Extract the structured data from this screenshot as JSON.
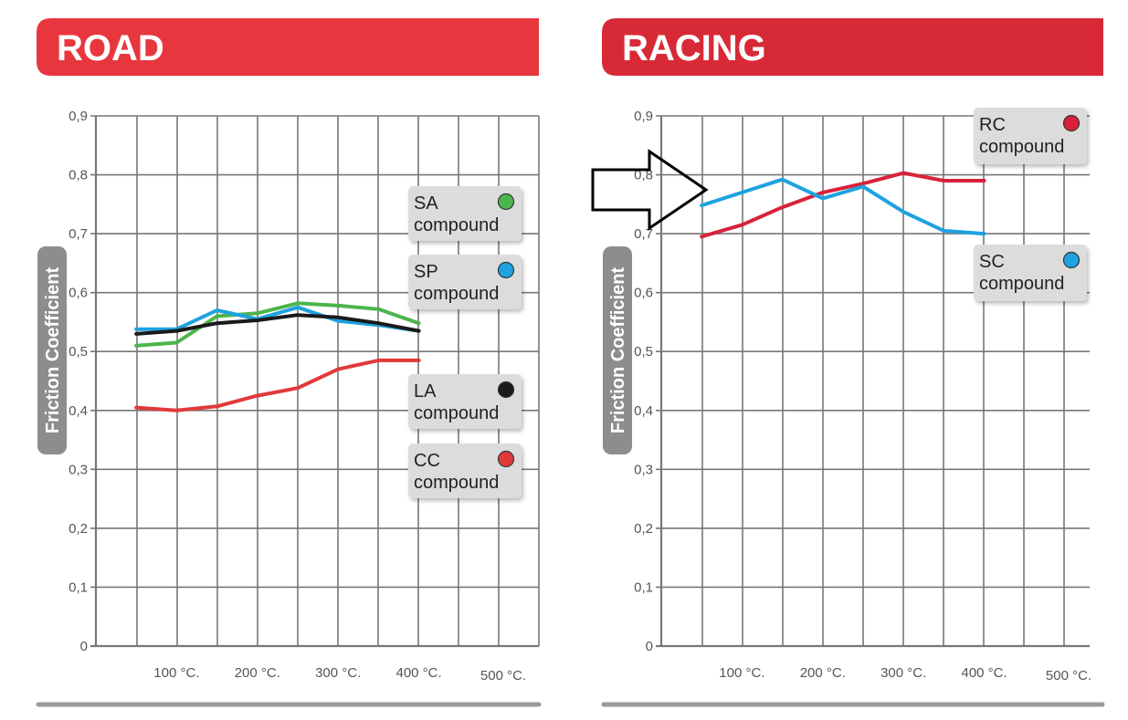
{
  "charts": [
    {
      "banner_title": "ROAD",
      "colors": {
        "banner": "#e8363f",
        "grid": "#777777"
      },
      "legend_entries": [
        {
          "code": "SA",
          "word": "compound",
          "color": "#4cb44c"
        },
        {
          "code": "SP",
          "word": "compound",
          "color": "#1ea2e0"
        },
        {
          "code": "LA",
          "word": "compound",
          "color": "#1a1a1a"
        },
        {
          "code": "CC",
          "word": "compound",
          "color": "#e03a3a"
        }
      ]
    },
    {
      "banner_title": "RACING",
      "colors": {
        "banner": "#d82a36",
        "grid": "#777777"
      },
      "legend_entries": [
        {
          "code": "RC",
          "word": "compound",
          "color": "#d8223a"
        },
        {
          "code": "SC",
          "word": "compound",
          "color": "#1ea2e0"
        }
      ]
    }
  ],
  "arrow": {
    "icon": "right-arrow-icon"
  },
  "chart_data": [
    {
      "type": "line",
      "title": "ROAD",
      "xlabel": "",
      "ylabel": "Friction Coefficient",
      "xlim": [
        0,
        500
      ],
      "ylim": [
        0,
        0.9
      ],
      "grid": true,
      "legend_placement": "right",
      "x_ticks": [
        {
          "v": 100,
          "label": "100 °C."
        },
        {
          "v": 200,
          "label": "200 °C."
        },
        {
          "v": 300,
          "label": "300 °C."
        },
        {
          "v": 400,
          "label": "400 °C."
        },
        {
          "v": 500,
          "label": "500 °C."
        }
      ],
      "y_ticks": [
        {
          "v": 0,
          "label": "0"
        },
        {
          "v": 0.1,
          "label": "0,1"
        },
        {
          "v": 0.2,
          "label": "0,2"
        },
        {
          "v": 0.3,
          "label": "0,3"
        },
        {
          "v": 0.4,
          "label": "0,4"
        },
        {
          "v": 0.5,
          "label": "0,5"
        },
        {
          "v": 0.6,
          "label": "0,6"
        },
        {
          "v": 0.7,
          "label": "0,7"
        },
        {
          "v": 0.8,
          "label": "0,8"
        },
        {
          "v": 0.9,
          "label": "0,9"
        }
      ],
      "series": [
        {
          "name": "SA compound",
          "color": "#4cb44c",
          "x": [
            50,
            100,
            150,
            200,
            250,
            300,
            350,
            400
          ],
          "y": [
            0.51,
            0.515,
            0.56,
            0.565,
            0.582,
            0.578,
            0.572,
            0.548
          ]
        },
        {
          "name": "SP compound",
          "color": "#1ea2e0",
          "x": [
            50,
            100,
            150,
            200,
            250,
            300,
            350,
            400
          ],
          "y": [
            0.538,
            0.538,
            0.57,
            0.555,
            0.575,
            0.552,
            0.545,
            0.535
          ]
        },
        {
          "name": "LA compound",
          "color": "#1a1a1a",
          "x": [
            50,
            100,
            150,
            200,
            250,
            300,
            350,
            400
          ],
          "y": [
            0.53,
            0.535,
            0.548,
            0.553,
            0.562,
            0.558,
            0.548,
            0.535
          ]
        },
        {
          "name": "CC compound",
          "color": "#e03a3a",
          "x": [
            50,
            100,
            150,
            200,
            250,
            300,
            350,
            400
          ],
          "y": [
            0.405,
            0.4,
            0.407,
            0.425,
            0.438,
            0.47,
            0.485,
            0.485
          ]
        }
      ]
    },
    {
      "type": "line",
      "title": "RACING",
      "xlabel": "",
      "ylabel": "Friction Coefficient",
      "xlim": [
        0,
        500
      ],
      "ylim": [
        0,
        0.9
      ],
      "grid": true,
      "legend_placement": "right",
      "x_ticks": [
        {
          "v": 100,
          "label": "100 °C."
        },
        {
          "v": 200,
          "label": "200 °C."
        },
        {
          "v": 300,
          "label": "300 °C."
        },
        {
          "v": 400,
          "label": "400 °C."
        },
        {
          "v": 500,
          "label": "500 °C."
        }
      ],
      "y_ticks": [
        {
          "v": 0,
          "label": "0"
        },
        {
          "v": 0.1,
          "label": "0,1"
        },
        {
          "v": 0.2,
          "label": "0,2"
        },
        {
          "v": 0.3,
          "label": "0,3"
        },
        {
          "v": 0.4,
          "label": "0,4"
        },
        {
          "v": 0.5,
          "label": "0,5"
        },
        {
          "v": 0.6,
          "label": "0,6"
        },
        {
          "v": 0.7,
          "label": "0,7"
        },
        {
          "v": 0.8,
          "label": "0,8"
        },
        {
          "v": 0.9,
          "label": "0,9"
        }
      ],
      "series": [
        {
          "name": "RC compound",
          "color": "#d8223a",
          "x": [
            50,
            100,
            150,
            200,
            250,
            300,
            350,
            400
          ],
          "y": [
            0.695,
            0.715,
            0.745,
            0.77,
            0.785,
            0.803,
            0.79,
            0.79
          ]
        },
        {
          "name": "SC compound",
          "color": "#1ea2e0",
          "x": [
            50,
            100,
            150,
            200,
            250,
            300,
            350,
            400
          ],
          "y": [
            0.748,
            0.77,
            0.792,
            0.76,
            0.78,
            0.737,
            0.705,
            0.7
          ]
        }
      ]
    }
  ]
}
